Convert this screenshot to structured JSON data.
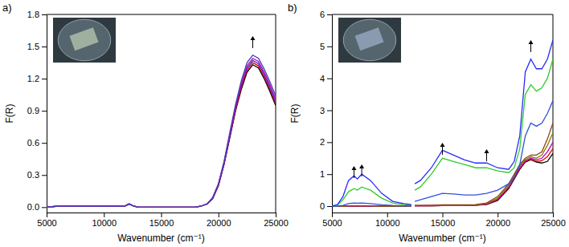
{
  "chart_data": [
    {
      "type": "line",
      "title": "a)",
      "xlabel": "Wavenumber (cm⁻¹)",
      "ylabel": "F(R)",
      "xlim": [
        5000,
        25000
      ],
      "xticks": [
        5000,
        10000,
        15000,
        20000,
        25000
      ],
      "ylim": [
        -0.05,
        1.8
      ],
      "yticks": [
        {
          "value": 0,
          "label": "0.0"
        },
        0.3,
        0.6,
        0.9,
        1.2,
        1.5,
        1.8
      ],
      "x": [
        5000,
        6000,
        7000,
        8000,
        9000,
        10000,
        11000,
        11800,
        12200,
        12600,
        13000,
        14000,
        15000,
        16000,
        17000,
        18000,
        18500,
        19000,
        19500,
        20000,
        20500,
        21000,
        21500,
        22000,
        22500,
        23000,
        23500,
        24000,
        24500,
        25000
      ],
      "series": [
        {
          "color": "#000000",
          "values": [
            0,
            0.01,
            0.01,
            0.01,
            0.01,
            0.01,
            0.01,
            0.01,
            0.03,
            0.01,
            0,
            0,
            0,
            0,
            0,
            0,
            0.01,
            0.03,
            0.08,
            0.2,
            0.4,
            0.65,
            0.9,
            1.1,
            1.26,
            1.33,
            1.3,
            1.2,
            1.08,
            0.95
          ]
        },
        {
          "color": "#e00000",
          "values": [
            0,
            0.01,
            0.01,
            0.01,
            0.01,
            0.01,
            0.01,
            0.01,
            0.03,
            0.01,
            0,
            0,
            0,
            0,
            0,
            0,
            0.01,
            0.03,
            0.08,
            0.2,
            0.41,
            0.66,
            0.91,
            1.12,
            1.28,
            1.35,
            1.32,
            1.22,
            1.1,
            0.97
          ]
        },
        {
          "color": "#3030e0",
          "values": [
            0,
            0.01,
            0.01,
            0.01,
            0.01,
            0.01,
            0.01,
            0.01,
            0.03,
            0.01,
            0,
            0,
            0,
            0,
            0,
            0,
            0.01,
            0.03,
            0.08,
            0.21,
            0.41,
            0.67,
            0.93,
            1.14,
            1.3,
            1.37,
            1.34,
            1.24,
            1.12,
            0.99
          ]
        },
        {
          "color": "#c000c0",
          "values": [
            0,
            0.01,
            0.01,
            0.01,
            0.01,
            0.01,
            0.01,
            0.01,
            0.03,
            0.01,
            0,
            0,
            0,
            0,
            0,
            0,
            0.01,
            0.03,
            0.09,
            0.21,
            0.42,
            0.68,
            0.94,
            1.15,
            1.32,
            1.39,
            1.36,
            1.26,
            1.14,
            1.01
          ]
        },
        {
          "color": "#4040b0",
          "values": [
            0,
            0.01,
            0.01,
            0.01,
            0.01,
            0.01,
            0.01,
            0.01,
            0.03,
            0.01,
            0,
            0,
            0,
            0,
            0,
            0,
            0.01,
            0.03,
            0.09,
            0.22,
            0.43,
            0.7,
            0.96,
            1.18,
            1.35,
            1.42,
            1.39,
            1.29,
            1.17,
            1.04
          ]
        }
      ]
    },
    {
      "type": "line",
      "title": "b)",
      "xlabel": "Wavenumber (cm⁻¹)",
      "ylabel": "F(R)",
      "xlim": [
        5000,
        25000
      ],
      "xticks": [
        5000,
        10000,
        15000,
        20000,
        25000
      ],
      "ylim": [
        -0.2,
        6
      ],
      "yticks": [
        0,
        1,
        2,
        3,
        4,
        5,
        6
      ],
      "x": [
        5000,
        5500,
        6000,
        6500,
        7000,
        7300,
        7700,
        8500,
        9500,
        10500,
        11500,
        12200,
        12300,
        12500,
        13000,
        14000,
        15000,
        16000,
        17000,
        18000,
        19000,
        20000,
        21000,
        21500,
        22000,
        22500,
        23000,
        23500,
        24000,
        24500,
        25000
      ],
      "series": [
        {
          "color": "#000000",
          "values": [
            0,
            0,
            0,
            0,
            0,
            0,
            0,
            0,
            0,
            0,
            0,
            0,
            null,
            0.01,
            0.01,
            0.01,
            0.02,
            0.02,
            0.02,
            0.03,
            0.05,
            0.18,
            0.55,
            0.85,
            1.15,
            1.38,
            1.45,
            1.38,
            1.35,
            1.4,
            1.65
          ]
        },
        {
          "color": "#e00000",
          "values": [
            0,
            0,
            0,
            0,
            0,
            0,
            0,
            0,
            0,
            0,
            0,
            0,
            null,
            0.01,
            0.01,
            0.01,
            0.02,
            0.02,
            0.02,
            0.03,
            0.06,
            0.2,
            0.58,
            0.88,
            1.18,
            1.4,
            1.47,
            1.4,
            1.42,
            1.55,
            1.8
          ]
        },
        {
          "color": "#c000c0",
          "values": [
            0,
            0,
            0,
            0,
            0,
            0,
            0,
            0,
            0,
            0,
            0,
            0,
            null,
            0.01,
            0.01,
            0.01,
            0.02,
            0.02,
            0.02,
            0.03,
            0.07,
            0.22,
            0.6,
            0.9,
            1.2,
            1.42,
            1.5,
            1.45,
            1.5,
            1.7,
            2.0
          ]
        },
        {
          "color": "#808000",
          "values": [
            0,
            0,
            0,
            0.01,
            0.01,
            0.01,
            0.01,
            0.01,
            0,
            0,
            0,
            0,
            null,
            0.02,
            0.02,
            0.02,
            0.03,
            0.03,
            0.03,
            0.04,
            0.08,
            0.25,
            0.65,
            0.95,
            1.25,
            1.45,
            1.55,
            1.5,
            1.6,
            1.9,
            2.3
          ]
        },
        {
          "color": "#8b4513",
          "values": [
            0,
            0,
            0,
            0.01,
            0.01,
            0.01,
            0.01,
            0.01,
            0,
            0,
            0,
            0,
            null,
            0.02,
            0.02,
            0.03,
            0.04,
            0.04,
            0.04,
            0.05,
            0.1,
            0.3,
            0.7,
            1.0,
            1.3,
            1.5,
            1.6,
            1.6,
            1.7,
            2.1,
            2.6
          ]
        },
        {
          "color": "#3050e0",
          "values": [
            0,
            0,
            0.02,
            0.08,
            0.1,
            0.09,
            0.1,
            0.08,
            0.04,
            0.02,
            0.01,
            0.01,
            null,
            0.15,
            0.2,
            0.3,
            0.4,
            0.38,
            0.35,
            0.35,
            0.4,
            0.5,
            0.7,
            0.9,
            1.3,
            2.2,
            2.6,
            2.5,
            2.6,
            2.9,
            3.3
          ]
        },
        {
          "color": "#2ecc2e",
          "values": [
            0,
            0.03,
            0.2,
            0.45,
            0.55,
            0.5,
            0.6,
            0.5,
            0.25,
            0.1,
            0.05,
            0.03,
            null,
            0.5,
            0.6,
            1.0,
            1.5,
            1.4,
            1.3,
            1.2,
            1.2,
            1.1,
            1.05,
            1.2,
            1.8,
            3.5,
            3.8,
            3.6,
            3.7,
            4.0,
            4.6
          ]
        },
        {
          "color": "#2a2aff",
          "values": [
            0,
            0.05,
            0.3,
            0.8,
            0.95,
            0.85,
            1.0,
            0.8,
            0.4,
            0.15,
            0.08,
            0.05,
            null,
            0.7,
            0.8,
            1.2,
            1.75,
            1.6,
            1.45,
            1.35,
            1.35,
            1.2,
            1.15,
            1.4,
            2.2,
            4.2,
            4.6,
            4.3,
            4.3,
            4.6,
            5.2
          ]
        }
      ]
    }
  ]
}
